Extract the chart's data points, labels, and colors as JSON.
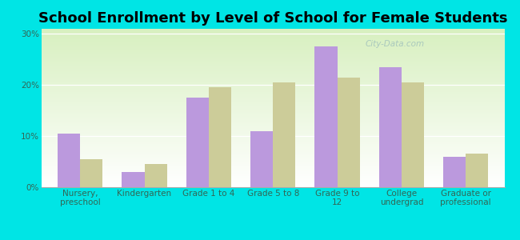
{
  "title": "School Enrollment by Level of School for Female Students",
  "categories": [
    "Nursery,\npreschool",
    "Kindergarten",
    "Grade 1 to 4",
    "Grade 5 to 8",
    "Grade 9 to\n12",
    "College\nundergrad",
    "Graduate or\nprofessional"
  ],
  "east_cleveland": [
    10.5,
    3.0,
    17.5,
    11.0,
    27.5,
    23.5,
    6.0
  ],
  "ohio": [
    5.5,
    4.5,
    19.5,
    20.5,
    21.5,
    20.5,
    6.5
  ],
  "ec_color": "#bb99dd",
  "ohio_color": "#cccc99",
  "background_color": "#00e5e5",
  "yticks": [
    0,
    10,
    20,
    30
  ],
  "ylim": [
    0,
    31
  ],
  "bar_width": 0.35,
  "title_fontsize": 13,
  "tick_fontsize": 7.5,
  "legend_fontsize": 9,
  "watermark": "City-Data.com"
}
